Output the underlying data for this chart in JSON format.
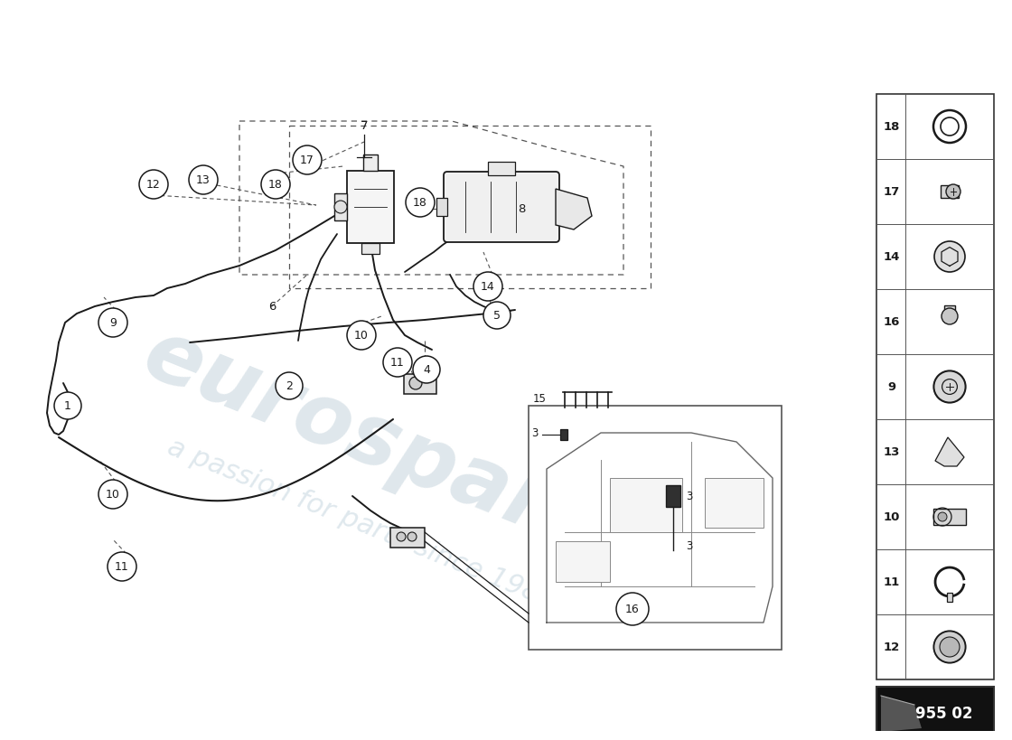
{
  "bg_color": "#ffffff",
  "line_color": "#1a1a1a",
  "dashed_color": "#555555",
  "watermark_text": "eurospares",
  "watermark_sub": "a passion for parts since 1985",
  "side_panel_items": [
    "18",
    "17",
    "14",
    "16",
    "9",
    "13",
    "10",
    "11",
    "12"
  ],
  "badge_text": "955 02",
  "badge_bg": "#111111",
  "badge_fg": "#ffffff"
}
